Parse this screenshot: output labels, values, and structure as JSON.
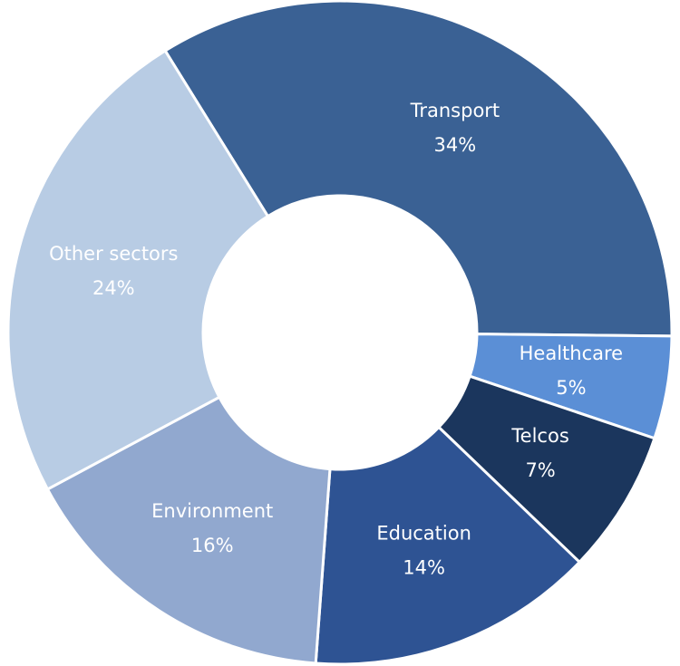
{
  "chart_data": {
    "type": "donut",
    "categories": [
      "Transport",
      "Healthcare",
      "Telcos",
      "Education",
      "Environment",
      "Other sectors"
    ],
    "values": [
      34,
      5,
      7,
      14,
      16,
      24
    ],
    "value_labels": [
      "34%",
      "5%",
      "7%",
      "14%",
      "16%",
      "24%"
    ],
    "colors": [
      "#3a6194",
      "#5b8fd6",
      "#1b365d",
      "#2e5393",
      "#91a8cf",
      "#b8cce4"
    ]
  }
}
